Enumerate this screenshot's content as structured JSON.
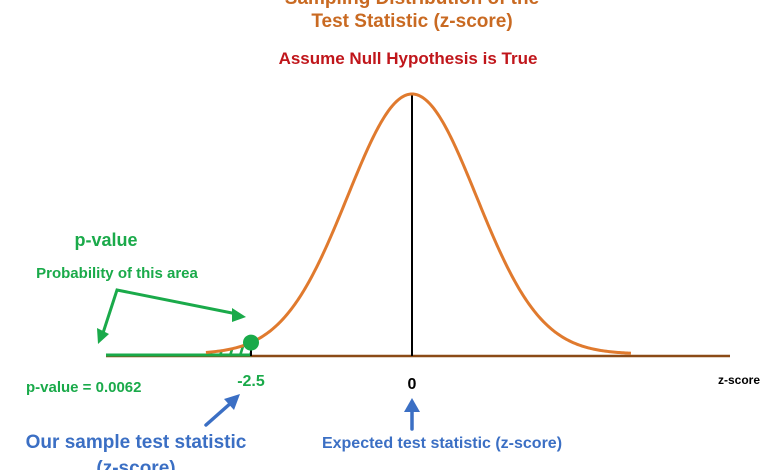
{
  "titles": {
    "line1": "Sampling Distribution of the",
    "line2": "Test Statistic (z-score)",
    "assumption": "Assume Null Hypothesis is True"
  },
  "labels": {
    "pvalue_heading": "p-value",
    "pvalue_description": "Probability of this area",
    "pvalue_value": "p-value = 0.0062",
    "test_stat_value": "-2.5",
    "center_value": "0",
    "axis_label": "z-score",
    "sample_caption_line1": "Our sample test statistic",
    "sample_caption_line2": "(z-score)",
    "expected_caption": "Expected test statistic (z-score)"
  },
  "colors": {
    "curve": "#e07a2e",
    "axis": "#8b4a16",
    "green": "#1aaa4a",
    "blue": "#3b6fc4",
    "title_orange": "#c96a22",
    "assumption_red": "#c0161b",
    "center_line": "#000000"
  },
  "icons": {
    "test_stat_arrow": "arrow-up-right-icon",
    "expected_arrow": "arrow-up-icon",
    "pvalue_pointer": "double-arrow-pointer-icon"
  },
  "chart_data": {
    "type": "area",
    "distribution": "standard-normal",
    "mean": 0,
    "sd": 1,
    "xlim": [
      -3.2,
      3.4
    ],
    "test_statistic": -2.5,
    "p_value": 0.0062,
    "shaded_tail": "left",
    "xlabel": "z-score"
  }
}
